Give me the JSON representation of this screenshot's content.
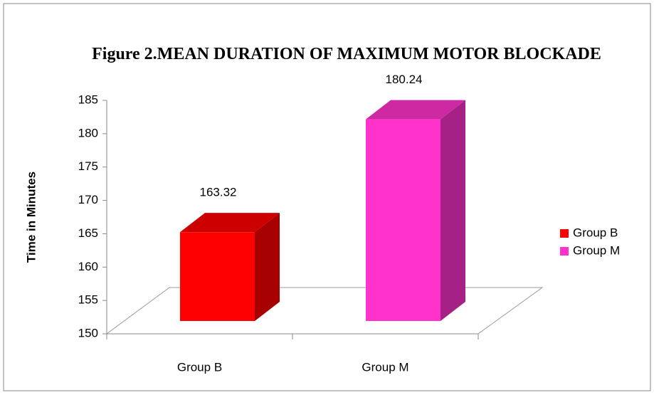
{
  "chart_data": {
    "type": "bar3d",
    "title": "Figure 2.MEAN DURATION OF MAXIMUM MOTOR BLOCKADE",
    "y_label": "Time in Minutes",
    "categories": [
      "Group B",
      "Group M"
    ],
    "series": [
      {
        "name": "Group B",
        "color": "#ff0000",
        "values": [
          163.32,
          null
        ]
      },
      {
        "name": "Group M",
        "color": "#ff33cc",
        "values": [
          null,
          180.24
        ]
      }
    ],
    "ylim": [
      150,
      185
    ],
    "yticks": [
      150,
      155,
      160,
      165,
      170,
      175,
      180,
      185
    ],
    "grid": false,
    "legend": "right"
  }
}
